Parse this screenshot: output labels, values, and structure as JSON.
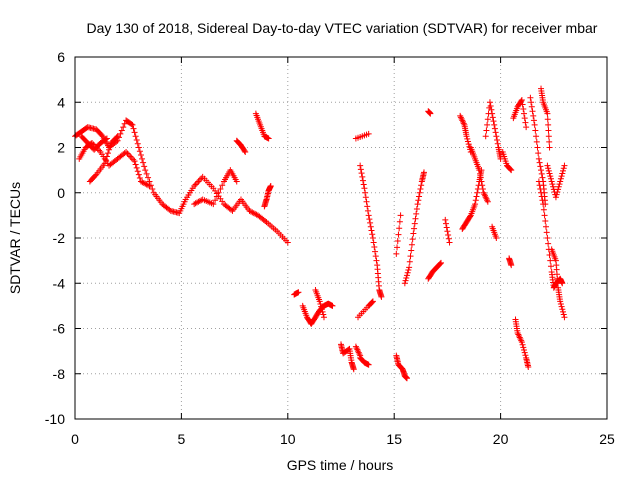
{
  "chart_data": {
    "type": "scatter",
    "title": "Day 130 of 2018, Sidereal Day-to-day VTEC variation (SDTVAR) for receiver mbar",
    "xlabel": "GPS time / hours",
    "ylabel": "SDTVAR / TECUs",
    "xlim": [
      0,
      25
    ],
    "ylim": [
      -10,
      6
    ],
    "xticks": [
      "0",
      "5",
      "10",
      "15",
      "20",
      "25"
    ],
    "yticks": [
      "6",
      "4",
      "2",
      "0",
      "-2",
      "-4",
      "-6",
      "-8",
      "-10"
    ],
    "grid": true,
    "marker": "plus",
    "color": "#ff0000",
    "segments": [
      [
        [
          0.0,
          2.5
        ],
        [
          0.3,
          2.7
        ],
        [
          0.6,
          2.9
        ],
        [
          1.0,
          2.8
        ],
        [
          1.3,
          2.5
        ],
        [
          1.6,
          2.0
        ],
        [
          2.0,
          2.3
        ],
        [
          2.4,
          3.2
        ],
        [
          2.7,
          3.0
        ],
        [
          3.0,
          2.0
        ],
        [
          3.3,
          1.0
        ],
        [
          3.7,
          0.0
        ],
        [
          4.1,
          -0.5
        ],
        [
          4.5,
          -0.8
        ],
        [
          4.9,
          -0.9
        ],
        [
          5.2,
          -0.3
        ],
        [
          5.6,
          0.3
        ],
        [
          6.0,
          0.7
        ],
        [
          6.5,
          0.2
        ],
        [
          7.0,
          -0.5
        ],
        [
          7.4,
          -0.8
        ],
        [
          7.8,
          -0.3
        ],
        [
          8.2,
          -0.8
        ],
        [
          8.6,
          -1.0
        ],
        [
          9.0,
          -1.3
        ],
        [
          9.5,
          -1.7
        ],
        [
          10.0,
          -2.2
        ]
      ],
      [
        [
          0.2,
          1.5
        ],
        [
          0.5,
          2.0
        ],
        [
          0.8,
          2.2
        ],
        [
          1.2,
          1.8
        ],
        [
          1.6,
          1.2
        ],
        [
          2.0,
          1.5
        ],
        [
          2.4,
          1.8
        ],
        [
          2.8,
          1.4
        ],
        [
          3.1,
          0.5
        ],
        [
          3.5,
          0.3
        ]
      ],
      [
        [
          0.7,
          0.5
        ],
        [
          1.0,
          0.8
        ],
        [
          1.4,
          1.3
        ],
        [
          1.7,
          2.2
        ],
        [
          2.0,
          2.5
        ]
      ],
      [
        [
          0.3,
          2.5
        ],
        [
          0.6,
          2.2
        ],
        [
          0.9,
          1.9
        ],
        [
          1.2,
          2.2
        ],
        [
          1.5,
          2.4
        ]
      ],
      [
        [
          5.6,
          -0.5
        ],
        [
          6.0,
          -0.3
        ],
        [
          6.5,
          -0.5
        ],
        [
          7.0,
          0.5
        ],
        [
          7.3,
          1.0
        ],
        [
          7.6,
          0.5
        ]
      ],
      [
        [
          7.6,
          2.3
        ],
        [
          7.8,
          2.1
        ],
        [
          8.0,
          1.8
        ]
      ],
      [
        [
          8.5,
          3.5
        ],
        [
          8.7,
          3.0
        ],
        [
          8.9,
          2.5
        ],
        [
          9.1,
          2.4
        ]
      ],
      [
        [
          8.9,
          -0.6
        ],
        [
          9.0,
          -0.3
        ],
        [
          9.1,
          0.1
        ],
        [
          9.2,
          0.3
        ]
      ],
      [
        [
          10.3,
          -4.5
        ],
        [
          10.5,
          -4.4
        ]
      ],
      [
        [
          10.7,
          -5.0
        ],
        [
          10.9,
          -5.5
        ],
        [
          11.1,
          -5.8
        ],
        [
          11.3,
          -5.5
        ],
        [
          11.5,
          -5.2
        ],
        [
          11.7,
          -5.0
        ],
        [
          11.9,
          -4.9
        ],
        [
          12.1,
          -5.0
        ]
      ],
      [
        [
          11.3,
          -4.3
        ],
        [
          11.5,
          -4.8
        ],
        [
          11.7,
          -5.5
        ]
      ],
      [
        [
          12.5,
          -6.7
        ],
        [
          12.6,
          -7.1
        ],
        [
          12.9,
          -6.9
        ],
        [
          13.0,
          -7.5
        ],
        [
          13.1,
          -7.8
        ]
      ],
      [
        [
          13.2,
          -6.8
        ],
        [
          13.4,
          -7.2
        ]
      ],
      [
        [
          13.4,
          -7.3
        ],
        [
          13.6,
          -7.5
        ],
        [
          13.8,
          -7.6
        ]
      ],
      [
        [
          13.2,
          2.4
        ],
        [
          13.8,
          2.6
        ]
      ],
      [
        [
          13.4,
          1.2
        ],
        [
          13.6,
          0.2
        ],
        [
          13.8,
          -1.0
        ],
        [
          14.0,
          -2.0
        ],
        [
          14.2,
          -3.2
        ],
        [
          14.3,
          -4.3
        ],
        [
          14.4,
          -4.6
        ]
      ],
      [
        [
          13.3,
          -5.5
        ],
        [
          13.8,
          -5.0
        ],
        [
          14.0,
          -4.8
        ]
      ],
      [
        [
          15.1,
          -7.2
        ],
        [
          15.2,
          -7.6
        ],
        [
          15.4,
          -7.8
        ],
        [
          15.5,
          -8.1
        ],
        [
          15.6,
          -8.2
        ]
      ],
      [
        [
          15.1,
          -2.7
        ],
        [
          15.3,
          -1.0
        ]
      ],
      [
        [
          15.5,
          -4.0
        ],
        [
          15.7,
          -3.3
        ],
        [
          15.9,
          -1.8
        ],
        [
          16.1,
          -0.5
        ],
        [
          16.3,
          0.5
        ],
        [
          16.4,
          0.9
        ]
      ],
      [
        [
          16.6,
          3.6
        ],
        [
          16.7,
          3.5
        ]
      ],
      [
        [
          16.6,
          -3.8
        ],
        [
          16.8,
          -3.5
        ],
        [
          17.0,
          -3.3
        ],
        [
          17.2,
          -3.1
        ]
      ],
      [
        [
          17.4,
          -1.2
        ],
        [
          17.6,
          -2.2
        ]
      ],
      [
        [
          18.1,
          3.4
        ],
        [
          18.3,
          3.0
        ],
        [
          18.4,
          2.5
        ],
        [
          18.6,
          1.8
        ]
      ],
      [
        [
          18.2,
          -1.6
        ],
        [
          18.4,
          -1.3
        ],
        [
          18.6,
          -1.0
        ],
        [
          18.8,
          -0.5
        ],
        [
          19.0,
          0.5
        ],
        [
          19.1,
          1.0
        ]
      ],
      [
        [
          18.6,
          2.0
        ],
        [
          18.8,
          1.5
        ],
        [
          19.0,
          1.0
        ],
        [
          19.2,
          0.0
        ],
        [
          19.4,
          -0.4
        ]
      ],
      [
        [
          19.3,
          2.5
        ],
        [
          19.5,
          4.0
        ],
        [
          19.7,
          3.0
        ],
        [
          19.9,
          2.0
        ],
        [
          20.0,
          1.5
        ]
      ],
      [
        [
          19.6,
          -1.5
        ],
        [
          19.8,
          -2.0
        ]
      ],
      [
        [
          20.1,
          1.8
        ],
        [
          20.3,
          1.2
        ],
        [
          20.5,
          1.0
        ]
      ],
      [
        [
          20.4,
          -2.9
        ],
        [
          20.5,
          -3.2
        ]
      ],
      [
        [
          20.6,
          3.3
        ],
        [
          20.8,
          3.8
        ],
        [
          21.0,
          4.1
        ],
        [
          21.2,
          2.9
        ]
      ],
      [
        [
          20.7,
          -5.6
        ],
        [
          20.8,
          -6.2
        ],
        [
          21.0,
          -6.6
        ],
        [
          21.2,
          -7.3
        ],
        [
          21.3,
          -7.7
        ]
      ],
      [
        [
          21.4,
          4.2
        ],
        [
          21.6,
          3.0
        ],
        [
          21.8,
          1.5
        ],
        [
          22.0,
          0.5
        ],
        [
          22.1,
          -0.5
        ]
      ],
      [
        [
          21.9,
          4.6
        ],
        [
          22.0,
          4.0
        ],
        [
          22.2,
          3.5
        ],
        [
          22.3,
          2.0
        ]
      ],
      [
        [
          21.8,
          0.5
        ],
        [
          22.0,
          -0.5
        ],
        [
          22.2,
          -2.0
        ],
        [
          22.4,
          -3.5
        ],
        [
          22.5,
          -4.2
        ],
        [
          22.6,
          -4.0
        ],
        [
          22.8,
          -3.8
        ],
        [
          22.9,
          -4.0
        ]
      ],
      [
        [
          22.2,
          1.2
        ],
        [
          22.4,
          0.5
        ],
        [
          22.6,
          -0.2
        ],
        [
          22.8,
          0.5
        ],
        [
          23.0,
          1.2
        ]
      ],
      [
        [
          22.4,
          -2.5
        ],
        [
          22.6,
          -3.0
        ],
        [
          22.7,
          -4.2
        ],
        [
          22.8,
          -4.8
        ],
        [
          23.0,
          -5.5
        ]
      ]
    ]
  }
}
